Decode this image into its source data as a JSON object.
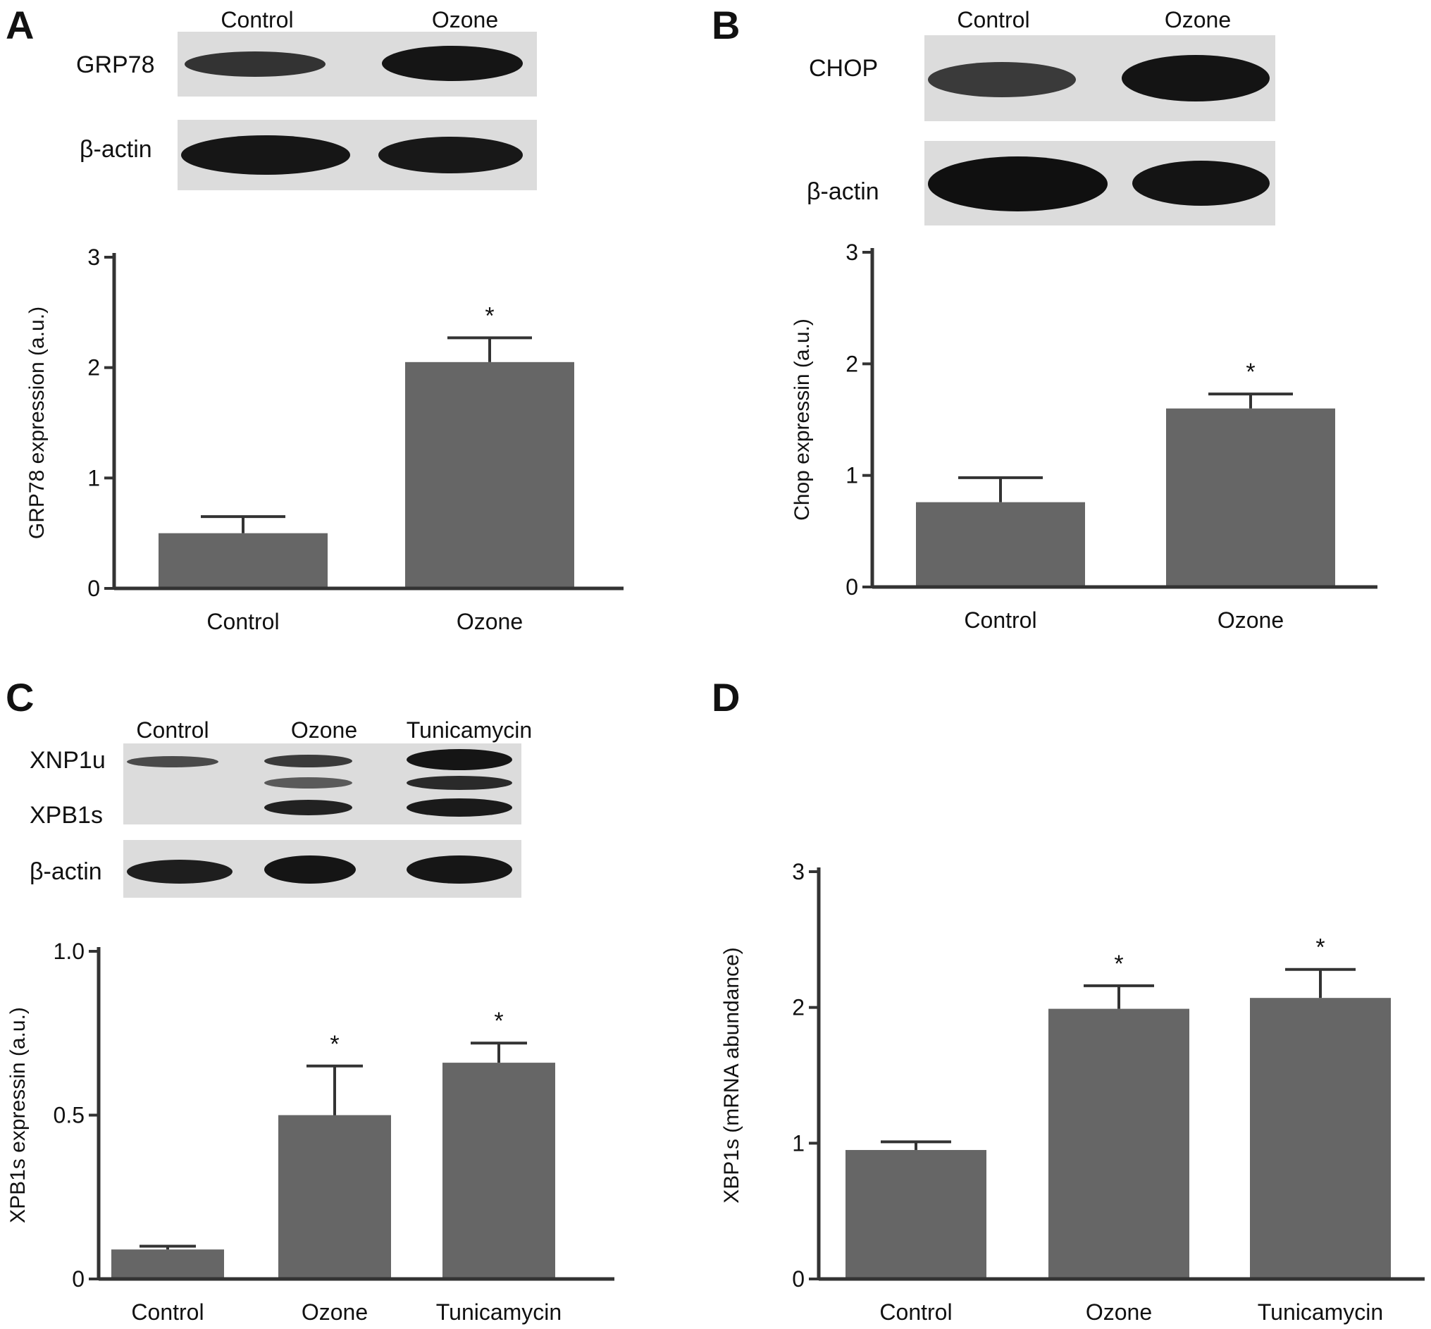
{
  "panels": {
    "A": {
      "letter": "A",
      "blot": {
        "lanes": [
          "Control",
          "Ozone"
        ],
        "rows": [
          "GRP78",
          "β-actin"
        ]
      }
    },
    "B": {
      "letter": "B",
      "blot": {
        "lanes": [
          "Control",
          "Ozone"
        ],
        "rows": [
          "CHOP",
          "β-actin"
        ]
      }
    },
    "C": {
      "letter": "C",
      "blot": {
        "lanes": [
          "Control",
          "Ozone",
          "Tunicamycin"
        ],
        "rows": [
          "XNP1u",
          "XPB1s",
          "β-actin"
        ]
      }
    },
    "D": {
      "letter": "D"
    }
  },
  "colors": {
    "bar": "#666666",
    "axis": "#333333",
    "blot_bg": "#dcdcdc",
    "band": "#1a1a1a"
  },
  "chart_data": [
    {
      "panel": "A",
      "type": "bar",
      "categories": [
        "Control",
        "Ozone"
      ],
      "values": [
        0.5,
        2.05
      ],
      "errors": [
        0.15,
        0.22
      ],
      "significance": [
        "",
        "*"
      ],
      "ylabel": "GRP78 expression (a.u.)",
      "ylim": [
        0,
        3
      ],
      "yticks": [
        0,
        1,
        2,
        3
      ],
      "ytick_labels": [
        "0",
        "1",
        "2",
        "3"
      ]
    },
    {
      "panel": "B",
      "type": "bar",
      "categories": [
        "Control",
        "Ozone"
      ],
      "values": [
        0.76,
        1.6
      ],
      "errors": [
        0.22,
        0.13
      ],
      "significance": [
        "",
        "*"
      ],
      "ylabel": "Chop expressin (a.u.)",
      "ylim": [
        0,
        3
      ],
      "yticks": [
        0,
        1,
        2,
        3
      ],
      "ytick_labels": [
        "0",
        "1",
        "2",
        "3"
      ]
    },
    {
      "panel": "C",
      "type": "bar",
      "categories": [
        "Control",
        "Ozone",
        "Tunicamycin"
      ],
      "values": [
        0.09,
        0.5,
        0.66
      ],
      "errors": [
        0.01,
        0.15,
        0.06
      ],
      "significance": [
        "",
        "*",
        "*"
      ],
      "ylabel": "XPB1s expressin (a.u.)",
      "ylim": [
        0,
        1.0
      ],
      "yticks": [
        0,
        0.5,
        1.0
      ],
      "ytick_labels": [
        "0",
        "0.5",
        "1.0"
      ]
    },
    {
      "panel": "D",
      "type": "bar",
      "categories": [
        "Control",
        "Ozone",
        "Tunicamycin"
      ],
      "values": [
        0.95,
        1.99,
        2.07
      ],
      "errors": [
        0.06,
        0.17,
        0.21
      ],
      "significance": [
        "",
        "*",
        "*"
      ],
      "ylabel": "XBP1s (mRNA abundance)",
      "ylim": [
        0,
        3
      ],
      "yticks": [
        0,
        1,
        2,
        3
      ],
      "ytick_labels": [
        "0",
        "1",
        "2",
        "3"
      ]
    }
  ]
}
